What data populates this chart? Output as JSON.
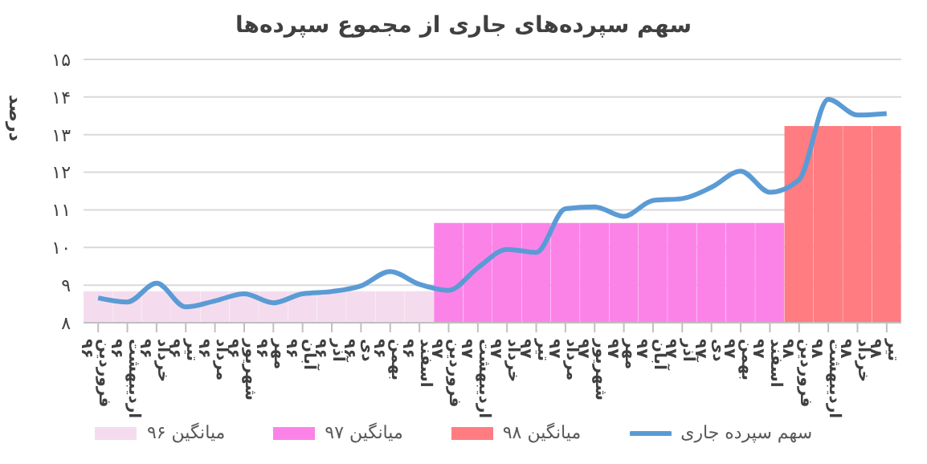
{
  "chart_data": {
    "type": "line",
    "title": "سهم سپرده‌های جاری از مجموع سپرده‌ها",
    "ylabel": "درصد",
    "categories": [
      "فروردین ۹۶",
      "اردیبهشت ۹۶",
      "خرداد ۹۶",
      "تیر ۹۶",
      "مرداد ۹۶",
      "شهریور ۹۶",
      "مهر ۹۶",
      "آبان ۹۶",
      "آذر ۹۶",
      "دی ۹۶",
      "بهمن ۹۶",
      "اسفند ۹۶",
      "فروردین ۹۷",
      "اردیبهشت ۹۷",
      "خرداد ۹۷",
      "تیر ۹۷",
      "مرداد ۹۷",
      "شهریور ۹۷",
      "مهر ۹۷",
      "آبان ۹۷",
      "آذر ۹۷",
      "دی ۹۷",
      "بهمن ۹۷",
      "اسفند ۹۷",
      "فروردین ۹۸",
      "اردیبهشت ۹۸",
      "خرداد ۹۸",
      "تیر ۹۸"
    ],
    "series": [
      {
        "name": "میانگین ۹۶",
        "type": "bar",
        "color": "#f4dcee",
        "values": [
          8.84,
          8.84,
          8.84,
          8.84,
          8.84,
          8.84,
          8.84,
          8.84,
          8.84,
          8.84,
          8.84,
          8.84,
          null,
          null,
          null,
          null,
          null,
          null,
          null,
          null,
          null,
          null,
          null,
          null,
          null,
          null,
          null,
          null
        ]
      },
      {
        "name": "میانگین ۹۷",
        "type": "bar",
        "color": "#fb83e8",
        "values": [
          null,
          null,
          null,
          null,
          null,
          null,
          null,
          null,
          null,
          null,
          null,
          null,
          10.65,
          10.65,
          10.65,
          10.65,
          10.65,
          10.65,
          10.65,
          10.65,
          10.65,
          10.65,
          10.65,
          10.65,
          null,
          null,
          null,
          null
        ]
      },
      {
        "name": "میانگین ۹۸",
        "type": "bar",
        "color": "#ff7c80",
        "values": [
          null,
          null,
          null,
          null,
          null,
          null,
          null,
          null,
          null,
          null,
          null,
          null,
          null,
          null,
          null,
          null,
          null,
          null,
          null,
          null,
          null,
          null,
          null,
          null,
          13.23,
          13.23,
          13.23,
          13.23
        ]
      },
      {
        "name": "سهم سپرده جاری",
        "color": "#5b9bd5",
        "values": [
          8.66,
          8.55,
          9.05,
          8.42,
          8.58,
          8.77,
          8.53,
          8.77,
          8.83,
          8.98,
          9.36,
          9.02,
          8.86,
          9.46,
          9.95,
          9.87,
          11.03,
          11.08,
          10.83,
          11.25,
          11.3,
          11.6,
          12.03,
          11.47,
          11.8,
          13.94,
          13.52,
          13.56
        ]
      }
    ],
    "stacked": true,
    "marker": "none",
    "line_style": "solid",
    "ylim": [
      8,
      15
    ],
    "yticks": [
      {
        "value": 8,
        "label": "۸"
      },
      {
        "value": 9,
        "label": "۹"
      },
      {
        "value": 10,
        "label": "۱۰"
      },
      {
        "value": 11,
        "label": "۱۱"
      },
      {
        "value": 12,
        "label": "۱۲"
      },
      {
        "value": 13,
        "label": "۱۳"
      },
      {
        "value": 14,
        "label": "۱۴"
      },
      {
        "value": 15,
        "label": "۱۵"
      }
    ],
    "grid": "y",
    "legend": "bottom"
  }
}
